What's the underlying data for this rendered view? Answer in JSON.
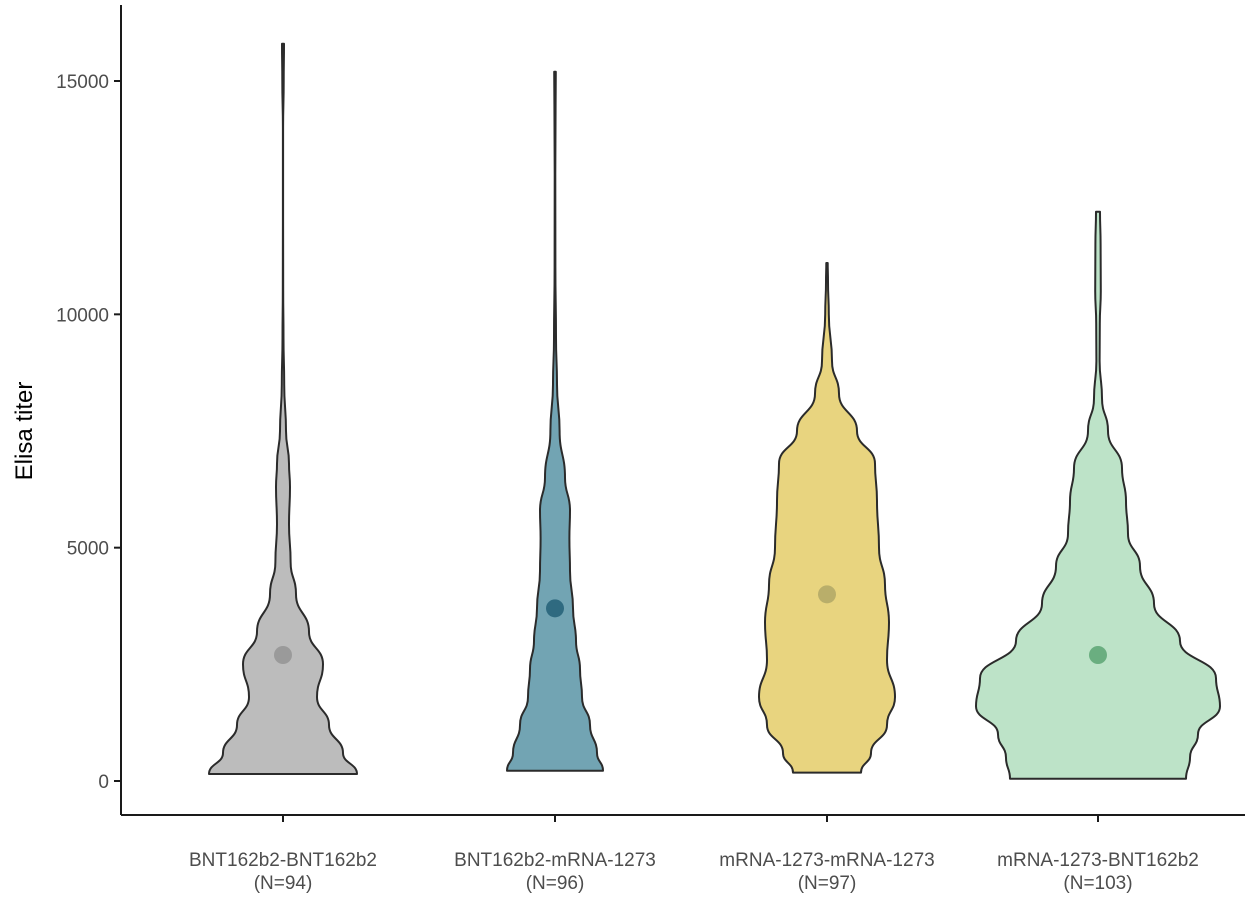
{
  "chart_data": {
    "type": "violin",
    "ylabel": "Elisa titer",
    "xlabel": "",
    "title": "",
    "ylim": [
      -700,
      16500
    ],
    "yticks": [
      0,
      5000,
      10000,
      15000
    ],
    "ytick_labels": [
      "0",
      "5000",
      "10000",
      "15000"
    ],
    "categories": [
      {
        "line1": "BNT162b2-BNT162b2",
        "line2": "(N=94)"
      },
      {
        "line1": "BNT162b2-mRNA-1273",
        "line2": "(N=96)"
      },
      {
        "line1": "mRNA-1273-mRNA-1273",
        "line2": "(N=97)"
      },
      {
        "line1": "mRNA-1273-BNT162b2",
        "line2": "(N=103)"
      }
    ],
    "series": [
      {
        "fill": "#bcbcbc",
        "median_color": "#9a9a9a",
        "median": 2700,
        "min": 150,
        "max": 15800,
        "profile": [
          [
            150,
            37
          ],
          [
            600,
            30
          ],
          [
            1200,
            23
          ],
          [
            1800,
            17
          ],
          [
            2500,
            20
          ],
          [
            3200,
            13
          ],
          [
            4000,
            6.5
          ],
          [
            4700,
            3.8
          ],
          [
            5500,
            3.0
          ],
          [
            6300,
            3.5
          ],
          [
            6800,
            3.0
          ],
          [
            7500,
            1.5
          ],
          [
            8500,
            0.6
          ],
          [
            9500,
            0.25
          ],
          [
            10500,
            0.12
          ],
          [
            12000,
            0.06
          ],
          [
            14000,
            0.06
          ],
          [
            15000,
            0.35
          ],
          [
            15800,
            0.5
          ]
        ]
      },
      {
        "fill": "#72a4b3",
        "median": 3700,
        "median_color": "#2f6a80",
        "min": 220,
        "max": 15200,
        "profile": [
          [
            220,
            24
          ],
          [
            600,
            21
          ],
          [
            1200,
            17.5
          ],
          [
            1800,
            13.5
          ],
          [
            2400,
            12.5
          ],
          [
            3000,
            10.5
          ],
          [
            3700,
            9.0
          ],
          [
            4500,
            7.5
          ],
          [
            5200,
            7.2
          ],
          [
            5800,
            7.5
          ],
          [
            6500,
            5.0
          ],
          [
            7500,
            2.3
          ],
          [
            8500,
            1.0
          ],
          [
            9500,
            0.5
          ],
          [
            11000,
            0.2
          ],
          [
            13000,
            0.15
          ],
          [
            14500,
            0.3
          ],
          [
            15200,
            0.4
          ]
        ]
      },
      {
        "fill": "#e8d47f",
        "median": 4000,
        "median_color": "#b9ae6a",
        "min": 180,
        "max": 11100,
        "profile": [
          [
            180,
            17
          ],
          [
            600,
            22
          ],
          [
            1200,
            30
          ],
          [
            1800,
            34
          ],
          [
            2600,
            30
          ],
          [
            3400,
            31
          ],
          [
            4200,
            29
          ],
          [
            5000,
            26
          ],
          [
            6000,
            25
          ],
          [
            6800,
            24
          ],
          [
            7500,
            15
          ],
          [
            8300,
            6
          ],
          [
            9000,
            2.5
          ],
          [
            10000,
            0.9
          ],
          [
            10700,
            0.5
          ],
          [
            11100,
            0.35
          ]
        ]
      },
      {
        "fill": "#bde3c8",
        "median": 2700,
        "median_color": "#6aae80",
        "min": 50,
        "max": 12200,
        "profile": [
          [
            50,
            44
          ],
          [
            500,
            46
          ],
          [
            1000,
            50
          ],
          [
            1600,
            61
          ],
          [
            2200,
            59
          ],
          [
            3000,
            41
          ],
          [
            3800,
            28
          ],
          [
            4600,
            21
          ],
          [
            5300,
            15
          ],
          [
            6000,
            14
          ],
          [
            6700,
            12
          ],
          [
            7500,
            5
          ],
          [
            8200,
            2
          ],
          [
            9000,
            0.8
          ],
          [
            9800,
            0.9
          ],
          [
            10500,
            1.4
          ],
          [
            11500,
            1.3
          ],
          [
            12200,
            1.0
          ]
        ]
      }
    ]
  }
}
